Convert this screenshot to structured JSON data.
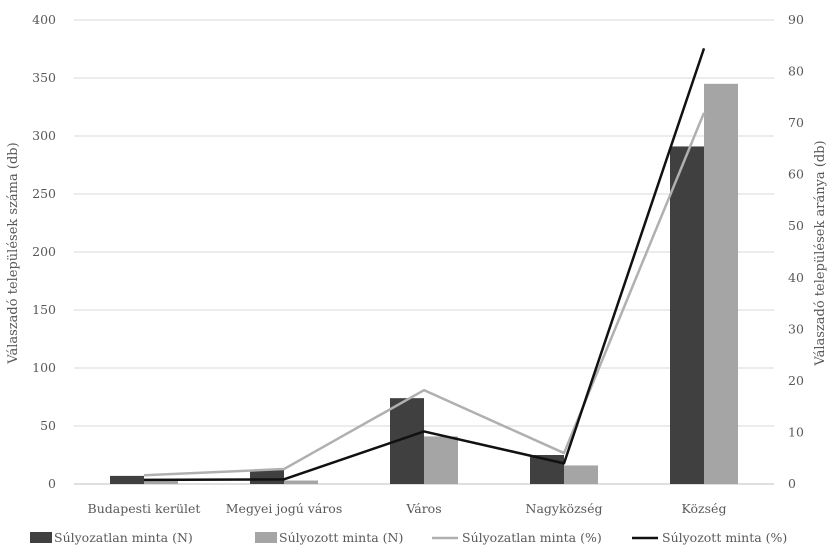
{
  "chart_data": {
    "type": "bar",
    "categories": [
      "Budapesti kerület",
      "Megyei jogú város",
      "Város",
      "Nagyközség",
      "Község"
    ],
    "ylabel": "Válaszadó települések száma (db)",
    "y2label": "Válaszadó települések aránya (db)",
    "ylim": [
      0,
      400
    ],
    "y2lim": [
      0,
      90
    ],
    "yticks": [
      0,
      50,
      100,
      150,
      200,
      250,
      300,
      350,
      400
    ],
    "y2ticks": [
      0,
      10,
      20,
      30,
      40,
      50,
      60,
      70,
      80,
      90
    ],
    "grid": true,
    "legend_position": "bottom",
    "series": [
      {
        "name": "Súlyozatlan minta (N)",
        "kind": "bar",
        "axis": "left",
        "color": "#404040",
        "values": [
          7,
          12,
          74,
          25,
          291
        ]
      },
      {
        "name": "Súlyozott minta (N)",
        "kind": "bar",
        "axis": "left",
        "color": "#a5a5a5",
        "values": [
          3,
          3,
          41,
          16,
          345
        ]
      },
      {
        "name": "Súlyozatlan minta (%)",
        "kind": "line",
        "axis": "right",
        "color": "#b0b0b0",
        "values": [
          1.7,
          2.9,
          18.2,
          6.0,
          72.0
        ]
      },
      {
        "name": "Súlyozott minta (%)",
        "kind": "line",
        "axis": "right",
        "color": "#111111",
        "values": [
          0.8,
          0.9,
          10.2,
          4.0,
          84.5
        ]
      }
    ]
  }
}
